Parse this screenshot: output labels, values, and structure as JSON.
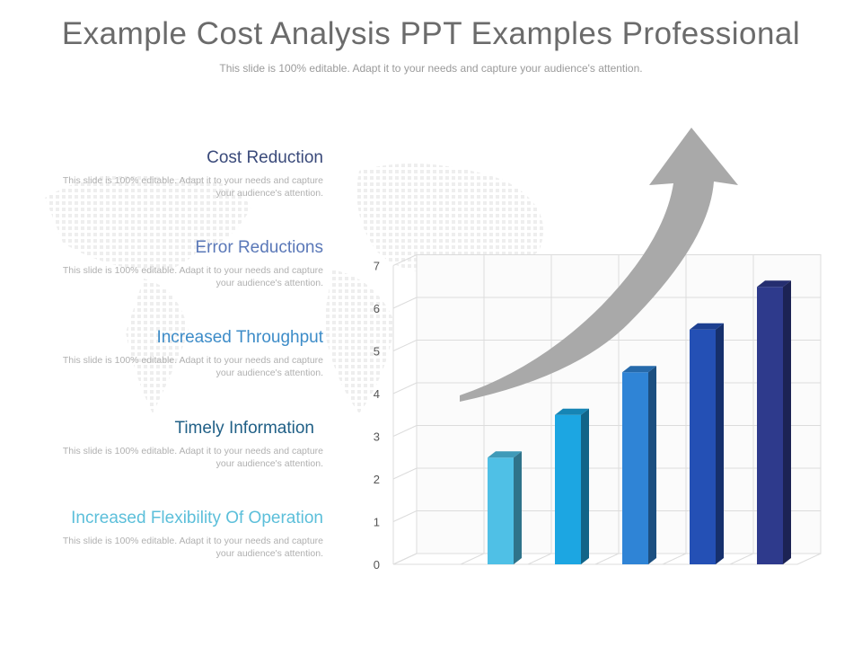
{
  "header": {
    "title": "Example Cost Analysis PPT Examples Professional",
    "subtitle": "This slide is 100% editable. Adapt it to your needs and capture your audience's attention."
  },
  "items": [
    {
      "heading": "Cost Reduction",
      "description": "This slide is 100% editable. Adapt it to your needs and capture your audience's attention.",
      "color": "#3a4a7a"
    },
    {
      "heading": "Error Reductions",
      "description": "This slide is 100% editable. Adapt it to your needs and capture your audience's attention.",
      "color": "#5a78b8"
    },
    {
      "heading": "Increased Throughput",
      "description": "This slide is 100% editable. Adapt it to your needs and capture your audience's attention.",
      "color": "#3d8cc8"
    },
    {
      "heading": "Timely  Information",
      "description": "This slide is 100% editable. Adapt it to your needs and capture your audience's attention.",
      "color": "#1f5f86"
    },
    {
      "heading": "Increased Flexibility Of Operation",
      "description": "This slide is 100% editable. Adapt it to your needs and capture your audience's attention.",
      "color": "#5cbfda"
    }
  ],
  "chart_data": {
    "type": "bar",
    "categories": [
      "",
      "",
      "",
      "",
      ""
    ],
    "values": [
      2.5,
      3.5,
      4.5,
      5.5,
      6.5
    ],
    "ylim": [
      0,
      7
    ],
    "yticks": [
      "0",
      "1",
      "2",
      "3",
      "4",
      "5",
      "6",
      "7"
    ],
    "grid": true,
    "colors": [
      "#4fc0e6",
      "#1ca6e2",
      "#2f84d6",
      "#2450b5",
      "#2e3a8c"
    ],
    "arrow_color": "#a9a9a9"
  }
}
